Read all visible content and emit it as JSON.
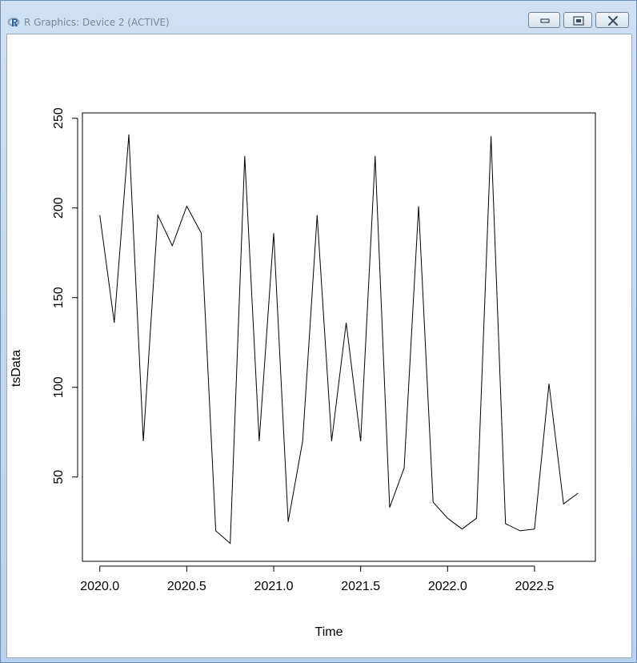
{
  "window": {
    "title": "R Graphics: Device 2 (ACTIVE)",
    "app_icon": "r-logo-icon",
    "controls": [
      "minimize-icon",
      "maximize-icon",
      "close-icon"
    ]
  },
  "chart_data": {
    "type": "line",
    "title": "",
    "xlabel": "Time",
    "ylabel": "tsData",
    "xlim": [
      2019.9,
      2022.85
    ],
    "ylim": [
      3,
      253
    ],
    "x_ticks": [
      2020.0,
      2020.5,
      2021.0,
      2021.5,
      2022.0,
      2022.5
    ],
    "x_tick_labels": [
      "2020.0",
      "2020.5",
      "2021.0",
      "2021.5",
      "2022.0",
      "2022.5"
    ],
    "y_ticks": [
      50,
      100,
      150,
      200,
      250
    ],
    "y_tick_labels": [
      "50",
      "100",
      "150",
      "200",
      "250"
    ],
    "grid": false,
    "line_color": "#000000",
    "series": [
      {
        "x": [
          2020.0,
          2020.0833,
          2020.1667,
          2020.25,
          2020.3333,
          2020.4167,
          2020.5,
          2020.5833,
          2020.6667,
          2020.75,
          2020.8333,
          2020.9167,
          2021.0,
          2021.0833,
          2021.1667,
          2021.25,
          2021.3333,
          2021.4167,
          2021.5,
          2021.5833,
          2021.6667,
          2021.75,
          2021.8333,
          2021.9167,
          2022.0,
          2022.0833,
          2022.1667,
          2022.25,
          2022.3333,
          2022.4167,
          2022.5,
          2022.5833,
          2022.6667,
          2022.75
        ],
        "values": [
          196,
          136,
          241,
          70,
          196,
          179,
          201,
          186,
          20,
          13,
          229,
          70,
          186,
          25,
          70,
          196,
          70,
          136,
          70,
          229,
          33,
          55,
          201,
          36,
          27,
          21,
          27,
          240,
          24,
          20,
          21,
          102,
          35,
          41
        ]
      }
    ]
  }
}
